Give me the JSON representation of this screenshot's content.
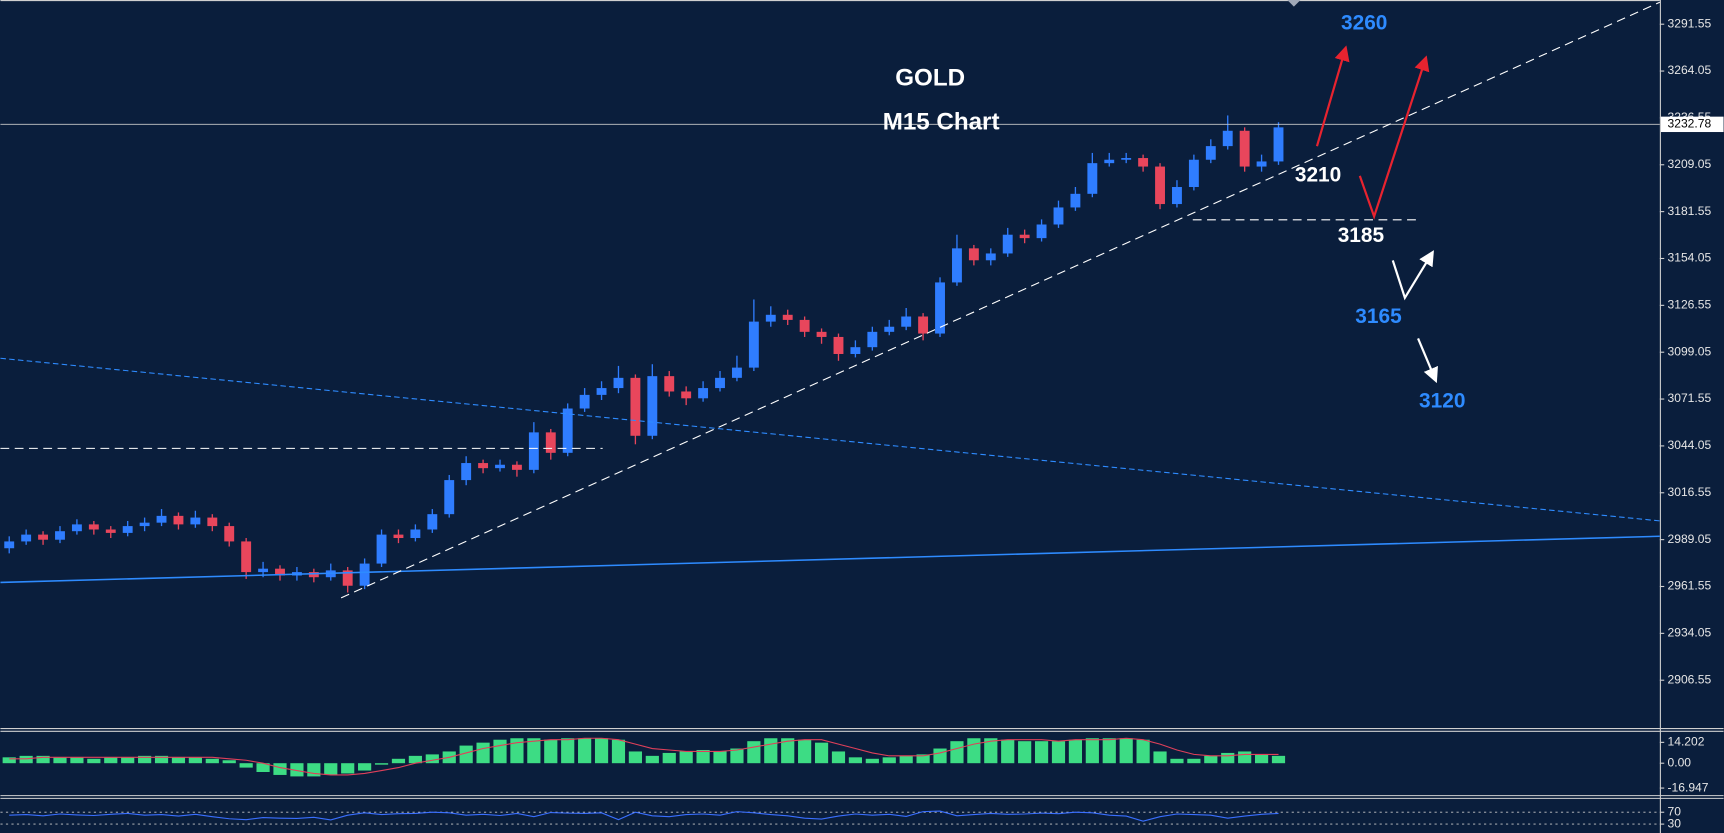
{
  "chart_data": [
    {
      "type": "candlestick",
      "title": "GOLD",
      "subtitle": "M15 Chart",
      "up_color": "#2f7dff",
      "down_color": "#e8465c",
      "ylim": [
        2878.15,
        3305.75
      ],
      "yticks": [
        3291.55,
        3264.05,
        3236.55,
        3209.05,
        3181.55,
        3154.05,
        3126.55,
        3099.05,
        3071.55,
        3044.05,
        3016.55,
        2989.05,
        2961.55,
        2934.05,
        2906.55
      ],
      "last_price": 3232.78,
      "open": [
        2984,
        2988,
        2992,
        2989,
        2994,
        2998,
        2995,
        2993,
        2997,
        2999,
        3003,
        2998,
        3002,
        2997,
        2988,
        2970,
        2972,
        2968,
        2970,
        2967,
        2971,
        2962,
        2975,
        2992,
        2990,
        2995,
        3004,
        3024,
        3034,
        3031,
        3033,
        3030,
        3052,
        3040,
        3066,
        3074,
        3078,
        3084,
        3050,
        3085,
        3076,
        3072,
        3078,
        3084,
        3090,
        3117,
        3121,
        3118,
        3111,
        3108,
        3098,
        3102,
        3111,
        3114,
        3120,
        3110,
        3140,
        3160,
        3153,
        3157,
        3168,
        3166,
        3174,
        3184,
        3192,
        3210,
        3212,
        3213,
        3208,
        3186,
        3196,
        3212,
        3220,
        3229,
        3208,
        3211
      ],
      "high": [
        2991,
        2995,
        2994,
        2997,
        3001,
        3000,
        2997,
        3000,
        3002,
        3007,
        3005,
        3006,
        3004,
        2999,
        2990,
        2976,
        2974,
        2973,
        2972,
        2975,
        2973,
        2978,
        2995,
        2995,
        2998,
        3007,
        3027,
        3038,
        3036,
        3036,
        3035,
        3058,
        3054,
        3069,
        3078,
        3082,
        3091,
        3086,
        3092,
        3088,
        3079,
        3082,
        3088,
        3097,
        3130,
        3126,
        3124,
        3120,
        3113,
        3110,
        3106,
        3114,
        3118,
        3125,
        3122,
        3143,
        3168,
        3162,
        3160,
        3172,
        3171,
        3177,
        3188,
        3196,
        3216,
        3216,
        3216,
        3215,
        3210,
        3200,
        3215,
        3224,
        3238,
        3231,
        3215,
        3234
      ],
      "low": [
        2981,
        2986,
        2986,
        2987,
        2992,
        2992,
        2990,
        2991,
        2994,
        2997,
        2995,
        2996,
        2994,
        2985,
        2966,
        2967,
        2965,
        2965,
        2964,
        2965,
        2958,
        2960,
        2973,
        2987,
        2988,
        2993,
        3002,
        3021,
        3028,
        3029,
        3026,
        3028,
        3036,
        3038,
        3064,
        3071,
        3075,
        3045,
        3048,
        3073,
        3068,
        3070,
        3076,
        3082,
        3088,
        3114,
        3115,
        3108,
        3104,
        3094,
        3096,
        3100,
        3109,
        3112,
        3106,
        3108,
        3138,
        3150,
        3150,
        3155,
        3163,
        3164,
        3172,
        3182,
        3190,
        3208,
        3210,
        3205,
        3183,
        3184,
        3194,
        3210,
        3218,
        3205,
        3205,
        3209
      ],
      "close": [
        2988,
        2992,
        2989,
        2994,
        2998,
        2995,
        2993,
        2997,
        2999,
        3003,
        2998,
        3002,
        2997,
        2988,
        2970,
        2972,
        2968,
        2970,
        2967,
        2971,
        2962,
        2975,
        2992,
        2990,
        2995,
        3004,
        3024,
        3034,
        3031,
        3033,
        3030,
        3052,
        3040,
        3066,
        3074,
        3078,
        3084,
        3050,
        3085,
        3076,
        3072,
        3078,
        3084,
        3090,
        3117,
        3121,
        3118,
        3111,
        3108,
        3098,
        3102,
        3111,
        3114,
        3120,
        3110,
        3140,
        3160,
        3153,
        3157,
        3168,
        3166,
        3174,
        3184,
        3192,
        3210,
        3212,
        3213,
        3208,
        3186,
        3196,
        3212,
        3220,
        3229,
        3208,
        3211,
        3231
      ],
      "annotations": [
        {
          "text": "3260",
          "color": "#2e8bff"
        },
        {
          "text": "3210",
          "color": "#ffffff"
        },
        {
          "text": "3185",
          "color": "#ffffff"
        },
        {
          "text": "3165",
          "color": "#2e8bff"
        },
        {
          "text": "3120",
          "color": "#2e8bff"
        }
      ]
    },
    {
      "type": "histogram-indicator",
      "color": "#3ddc84",
      "signal_color": "#e0405a",
      "ylim": [
        -22.1,
        21.7
      ],
      "yticks": [
        14.202,
        {
          "value": 0,
          "label": "0.00"
        },
        -16.947
      ],
      "values": [
        4,
        5,
        5,
        4,
        4,
        3,
        4,
        4,
        5,
        5,
        4,
        4,
        3,
        2,
        -3,
        -6,
        -8,
        -9,
        -9,
        -8,
        -7,
        -5,
        -1,
        3,
        5,
        6,
        8,
        12,
        14,
        16,
        17,
        17,
        16,
        17,
        17,
        17,
        16,
        8,
        5,
        7,
        8,
        9,
        8,
        10,
        15,
        17,
        17,
        16,
        14,
        8,
        4,
        3,
        4,
        5,
        6,
        10,
        15,
        17,
        17,
        16,
        15,
        15,
        15,
        16,
        17,
        17,
        17,
        16,
        8,
        3,
        3,
        5,
        7,
        8,
        6,
        5
      ],
      "signal": [
        3,
        3,
        4,
        4,
        4,
        4,
        4,
        4,
        4,
        4,
        4,
        4,
        4,
        3,
        2,
        0,
        -3,
        -5,
        -7,
        -8,
        -8,
        -7,
        -5,
        -3,
        0,
        2,
        4,
        7,
        10,
        12,
        14,
        15,
        16,
        16,
        17,
        17,
        16,
        13,
        10,
        9,
        8,
        8,
        8,
        9,
        11,
        13,
        15,
        16,
        16,
        13,
        10,
        7,
        5,
        5,
        5,
        7,
        10,
        13,
        15,
        16,
        16,
        16,
        15,
        16,
        16,
        16,
        17,
        16,
        13,
        9,
        6,
        5,
        5,
        6,
        6,
        6
      ]
    },
    {
      "type": "line",
      "color": "#3a6fff",
      "grid": true,
      "ylim": [
        0,
        100
      ],
      "yticks": [
        70,
        30
      ],
      "values": [
        60,
        62,
        58,
        64,
        61,
        59,
        63,
        66,
        60,
        62,
        57,
        63,
        55,
        48,
        45,
        52,
        50,
        49,
        53,
        44,
        60,
        68,
        62,
        65,
        66,
        70,
        68,
        60,
        63,
        59,
        66,
        55,
        69,
        67,
        66,
        68,
        45,
        70,
        58,
        55,
        62,
        64,
        60,
        72,
        68,
        62,
        58,
        50,
        47,
        57,
        64,
        60,
        63,
        56,
        72,
        74,
        58,
        62,
        66,
        63,
        64,
        67,
        65,
        70,
        68,
        60,
        57,
        40,
        55,
        64,
        62,
        60,
        50,
        57,
        63,
        66
      ]
    }
  ]
}
